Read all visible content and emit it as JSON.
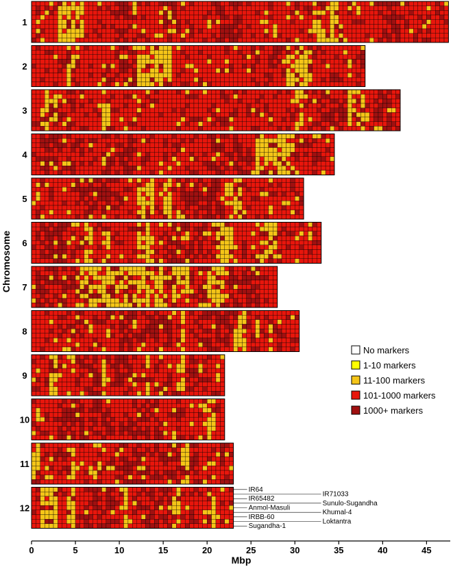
{
  "chart_data": {
    "type": "heatmap",
    "xlabel": "Mbp",
    "ylabel": "Chromosome",
    "xlim": [
      0,
      47.7
    ],
    "x_ticks": [
      0,
      5,
      10,
      15,
      20,
      25,
      30,
      35,
      40,
      45
    ],
    "bin_size_mbp": 0.5,
    "legend": {
      "placement": "right",
      "items": [
        {
          "label": "No markers",
          "color": "#ffffff"
        },
        {
          "label": "1-10 markers",
          "color": "#ffff00"
        },
        {
          "label": "11-100 markers",
          "color": "#f5c518"
        },
        {
          "label": "101-1000 markers",
          "color": "#e8160c"
        },
        {
          "label": "1000+ markers",
          "color": "#a01010"
        }
      ]
    },
    "varieties": [
      "IR64",
      "IR71033",
      "IR65482",
      "Sunulo-Sugandha",
      "Anmol-Masuli",
      "Khumal-4",
      "IRBB-60",
      "Loktantra",
      "Sugandha-1"
    ],
    "chromosomes": [
      {
        "label": "1",
        "length": 47.5,
        "yellow": [
          [
            3,
            6
          ],
          [
            32,
            33.5
          ],
          [
            34,
            35
          ]
        ],
        "dark": [
          [
            9.5,
            11
          ],
          [
            15,
            17
          ],
          [
            21,
            24
          ],
          [
            40,
            42
          ]
        ]
      },
      {
        "label": "2",
        "length": 38,
        "yellow": [
          [
            4,
            4.5
          ],
          [
            12,
            16
          ],
          [
            29,
            32
          ]
        ],
        "dark": [
          [
            10,
            12
          ],
          [
            25,
            29
          ]
        ]
      },
      {
        "label": "3",
        "length": 42,
        "yellow": [
          [
            1,
            3
          ],
          [
            8,
            9
          ],
          [
            30,
            31
          ],
          [
            36,
            38
          ]
        ],
        "dark": [
          [
            33,
            36
          ],
          [
            39,
            41
          ]
        ]
      },
      {
        "label": "4",
        "length": 34.5,
        "yellow": [
          [
            25.5,
            30
          ]
        ],
        "dark": [
          [
            1,
            5
          ],
          [
            8,
            12
          ],
          [
            20,
            25
          ]
        ]
      },
      {
        "label": "5",
        "length": 31,
        "yellow": [
          [
            12,
            14
          ],
          [
            15,
            16
          ],
          [
            22,
            24
          ]
        ],
        "dark": [
          [
            5,
            10
          ],
          [
            17,
            22
          ]
        ]
      },
      {
        "label": "6",
        "length": 33,
        "yellow": [
          [
            6,
            7
          ],
          [
            8,
            9
          ],
          [
            12,
            14
          ],
          [
            21,
            23
          ],
          [
            26,
            28
          ]
        ],
        "dark": [
          [
            1,
            4
          ],
          [
            15,
            20
          ]
        ]
      },
      {
        "label": "7",
        "length": 28,
        "yellow": [
          [
            5,
            15.5
          ],
          [
            16,
            18
          ],
          [
            20,
            22
          ]
        ],
        "dark": [
          [
            0.5,
            5
          ],
          [
            19,
            20
          ],
          [
            22,
            26
          ]
        ]
      },
      {
        "label": "8",
        "length": 30.5,
        "yellow": [
          [
            17,
            17.5
          ],
          [
            23,
            24.5
          ],
          [
            25.5,
            26
          ],
          [
            27,
            27.5
          ]
        ],
        "dark": [
          [
            10,
            16
          ],
          [
            19,
            23
          ]
        ]
      },
      {
        "label": "9",
        "length": 22,
        "yellow": [
          [
            2,
            3
          ],
          [
            8,
            8.5
          ],
          [
            13,
            13.5
          ],
          [
            16.5,
            17.5
          ]
        ],
        "dark": [
          [
            5,
            12
          ],
          [
            18,
            20
          ]
        ]
      },
      {
        "label": "10",
        "length": 22,
        "yellow": [
          [
            19.5,
            21
          ]
        ],
        "dark": [
          [
            3,
            9
          ],
          [
            11,
            15
          ]
        ]
      },
      {
        "label": "11",
        "length": 23,
        "yellow": [
          [
            0,
            1
          ],
          [
            4,
            5
          ],
          [
            7,
            8
          ],
          [
            17,
            18
          ]
        ],
        "dark": [
          [
            9,
            13
          ],
          [
            15,
            19
          ]
        ]
      },
      {
        "label": "12",
        "length": 23,
        "yellow": [
          [
            1,
            3
          ],
          [
            4,
            5
          ],
          [
            10,
            11
          ],
          [
            16,
            17
          ],
          [
            20.5,
            21
          ]
        ],
        "dark": [
          [
            6,
            10
          ],
          [
            12,
            16
          ]
        ]
      }
    ]
  }
}
